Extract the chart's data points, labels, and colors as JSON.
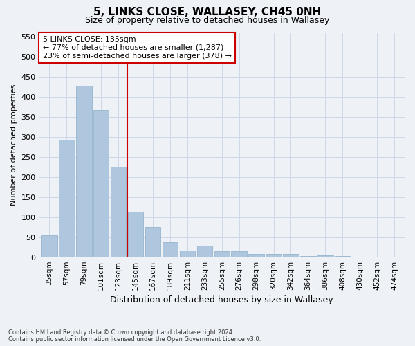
{
  "title1": "5, LINKS CLOSE, WALLASEY, CH45 0NH",
  "title2": "Size of property relative to detached houses in Wallasey",
  "xlabel": "Distribution of detached houses by size in Wallasey",
  "ylabel": "Number of detached properties",
  "categories": [
    "35sqm",
    "57sqm",
    "79sqm",
    "101sqm",
    "123sqm",
    "145sqm",
    "167sqm",
    "189sqm",
    "211sqm",
    "233sqm",
    "255sqm",
    "276sqm",
    "298sqm",
    "320sqm",
    "342sqm",
    "364sqm",
    "386sqm",
    "408sqm",
    "430sqm",
    "452sqm",
    "474sqm"
  ],
  "values": [
    55,
    293,
    428,
    367,
    225,
    113,
    75,
    37,
    17,
    29,
    15,
    15,
    8,
    8,
    8,
    3,
    5,
    3,
    1,
    1,
    2
  ],
  "bar_color": "#aec6de",
  "bar_edge_color": "#8aaec8",
  "vline_x": 4.5,
  "vline_color": "#cc0000",
  "annotation_text": "5 LINKS CLOSE: 135sqm\n← 77% of detached houses are smaller (1,287)\n23% of semi-detached houses are larger (378) →",
  "annotation_box_color": "#ffffff",
  "annotation_box_edge": "#cc0000",
  "ylim": [
    0,
    560
  ],
  "yticks": [
    0,
    50,
    100,
    150,
    200,
    250,
    300,
    350,
    400,
    450,
    500,
    550
  ],
  "footer": "Contains HM Land Registry data © Crown copyright and database right 2024.\nContains public sector information licensed under the Open Government Licence v3.0.",
  "bg_color": "#eef2f7",
  "grid_color": "#cdd8e8",
  "title1_fontsize": 11,
  "title2_fontsize": 9,
  "annot_fontsize": 8,
  "ylabel_fontsize": 8,
  "xlabel_fontsize": 9
}
